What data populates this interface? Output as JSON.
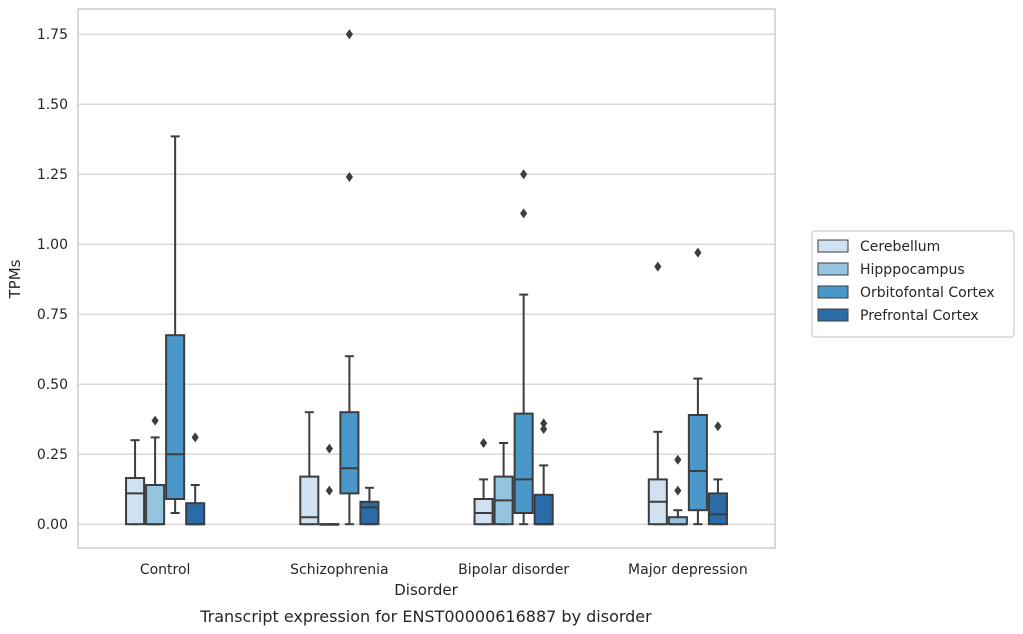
{
  "chart_data": {
    "type": "box",
    "caption": "Transcript expression for ENST00000616887 by disorder",
    "xlabel": "Disorder",
    "ylabel": "TPMs",
    "ylim": [
      -0.085,
      1.84
    ],
    "yticks": [
      0,
      0.25,
      0.5,
      0.75,
      1.0,
      1.25,
      1.5,
      1.75
    ],
    "ytick_labels": [
      "0.00",
      "0.25",
      "0.50",
      "0.75",
      "1.00",
      "1.25",
      "1.50",
      "1.75"
    ],
    "grid": "horizontal",
    "legend_position": "right",
    "categories": [
      "Control",
      "Schizophrenia",
      "Bipolar disorder",
      "Major depression"
    ],
    "series": [
      {
        "name": "Cerebellum",
        "color": "#d0e1f2",
        "boxes": [
          {
            "whisker_low": 0,
            "q1": 0,
            "median": 0.11,
            "q3": 0.165,
            "whisker_high": 0.3,
            "outliers": []
          },
          {
            "whisker_low": 0,
            "q1": 0,
            "median": 0.025,
            "q3": 0.17,
            "whisker_high": 0.4,
            "outliers": []
          },
          {
            "whisker_low": 0,
            "q1": 0,
            "median": 0.04,
            "q3": 0.09,
            "whisker_high": 0.16,
            "outliers": [
              0.29
            ]
          },
          {
            "whisker_low": 0,
            "q1": 0,
            "median": 0.08,
            "q3": 0.16,
            "whisker_high": 0.33,
            "outliers": [
              0.92
            ]
          }
        ]
      },
      {
        "name": "Hipppocampus",
        "color": "#94c4df",
        "boxes": [
          {
            "whisker_low": 0,
            "q1": 0,
            "median": 0,
            "q3": 0.14,
            "whisker_high": 0.31,
            "outliers": [
              0.37
            ]
          },
          {
            "whisker_low": 0,
            "q1": 0,
            "median": 0,
            "q3": 0,
            "whisker_high": 0,
            "outliers": [
              0.12,
              0.27
            ]
          },
          {
            "whisker_low": 0,
            "q1": 0,
            "median": 0.085,
            "q3": 0.17,
            "whisker_high": 0.29,
            "outliers": []
          },
          {
            "whisker_low": 0,
            "q1": 0,
            "median": 0,
            "q3": 0.025,
            "whisker_high": 0.05,
            "outliers": [
              0.12,
              0.23
            ]
          }
        ]
      },
      {
        "name": "Orbitofontal Cortex",
        "color": "#4a98c9",
        "boxes": [
          {
            "whisker_low": 0.04,
            "q1": 0.09,
            "median": 0.25,
            "q3": 0.675,
            "whisker_high": 1.385,
            "outliers": []
          },
          {
            "whisker_low": 0,
            "q1": 0.11,
            "median": 0.2,
            "q3": 0.4,
            "whisker_high": 0.6,
            "outliers": [
              1.24,
              1.75
            ]
          },
          {
            "whisker_low": 0,
            "q1": 0.04,
            "median": 0.16,
            "q3": 0.395,
            "whisker_high": 0.82,
            "outliers": [
              1.11,
              1.25
            ]
          },
          {
            "whisker_low": 0,
            "q1": 0.05,
            "median": 0.19,
            "q3": 0.39,
            "whisker_high": 0.52,
            "outliers": [
              0.97
            ]
          }
        ]
      },
      {
        "name": "Prefrontal Cortex",
        "color": "#2b6ca8",
        "boxes": [
          {
            "whisker_low": 0,
            "q1": 0,
            "median": 0,
            "q3": 0.075,
            "whisker_high": 0.14,
            "outliers": [
              0.31
            ]
          },
          {
            "whisker_low": 0,
            "q1": 0,
            "median": 0.06,
            "q3": 0.08,
            "whisker_high": 0.13,
            "outliers": []
          },
          {
            "whisker_low": 0,
            "q1": 0,
            "median": 0,
            "q3": 0.105,
            "whisker_high": 0.21,
            "outliers": [
              0.34,
              0.36
            ]
          },
          {
            "whisker_low": 0,
            "q1": 0,
            "median": 0.035,
            "q3": 0.11,
            "whisker_high": 0.16,
            "outliers": [
              0.35
            ]
          }
        ]
      }
    ]
  }
}
